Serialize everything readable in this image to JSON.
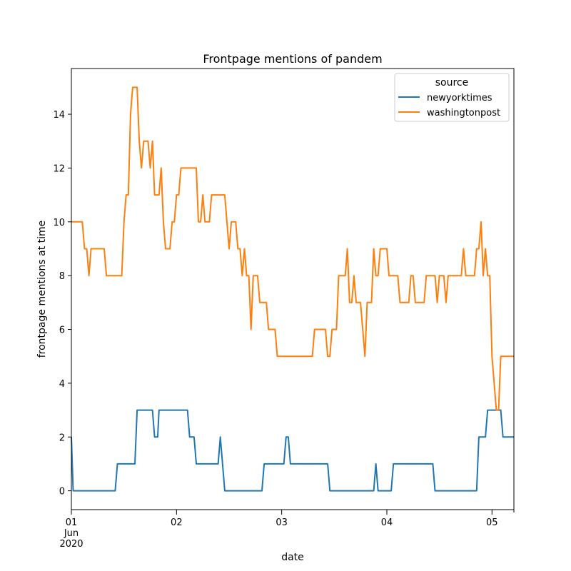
{
  "chart_data": {
    "type": "line",
    "title": "Frontpage mentions of pandem",
    "xlabel": "date",
    "ylabel": "frontpage mentions at time",
    "x_unit": "hours since 2020-06-01 00:00",
    "xlim": [
      0,
      101
    ],
    "ylim": [
      -0.7,
      15.7
    ],
    "grid": false,
    "legend": {
      "title": "source",
      "placement": "top-right"
    },
    "x_ticks": [
      {
        "x": 0,
        "label": "01",
        "sub": [
          "Jun",
          "2020"
        ]
      },
      {
        "x": 24,
        "label": "02"
      },
      {
        "x": 48,
        "label": "03"
      },
      {
        "x": 72,
        "label": "04"
      },
      {
        "x": 96,
        "label": "05"
      }
    ],
    "y_ticks": [
      0,
      2,
      4,
      6,
      8,
      10,
      12,
      14
    ],
    "series": [
      {
        "name": "newyorktimes",
        "color": "#1f77b4",
        "points": [
          [
            0,
            2
          ],
          [
            0.4,
            0
          ],
          [
            10,
            0
          ],
          [
            10.5,
            1
          ],
          [
            14.5,
            1
          ],
          [
            15,
            3
          ],
          [
            18.5,
            3
          ],
          [
            19,
            2
          ],
          [
            19.7,
            2
          ],
          [
            20,
            3
          ],
          [
            26.5,
            3
          ],
          [
            27,
            2
          ],
          [
            28,
            2
          ],
          [
            28.5,
            1
          ],
          [
            33.5,
            1
          ],
          [
            34,
            2
          ],
          [
            35,
            0
          ],
          [
            43.5,
            0
          ],
          [
            44,
            1
          ],
          [
            48.5,
            1
          ],
          [
            49,
            2
          ],
          [
            49.5,
            2
          ],
          [
            50,
            1
          ],
          [
            58.5,
            1
          ],
          [
            59,
            0
          ],
          [
            69,
            0
          ],
          [
            69.5,
            1
          ],
          [
            70,
            0
          ],
          [
            73,
            0
          ],
          [
            73.5,
            1
          ],
          [
            82.5,
            1
          ],
          [
            83,
            0
          ],
          [
            92.5,
            0
          ],
          [
            93,
            2
          ],
          [
            94.5,
            2
          ],
          [
            95,
            3
          ],
          [
            98,
            3
          ],
          [
            98.5,
            2
          ],
          [
            101,
            2
          ]
        ]
      },
      {
        "name": "washingtonpost",
        "color": "#ff7f0e",
        "points": [
          [
            0,
            10
          ],
          [
            2.5,
            10
          ],
          [
            3,
            9
          ],
          [
            3.5,
            9
          ],
          [
            4,
            8
          ],
          [
            4.5,
            9
          ],
          [
            7.5,
            9
          ],
          [
            8,
            8
          ],
          [
            11.5,
            8
          ],
          [
            12,
            10
          ],
          [
            12.5,
            11
          ],
          [
            13,
            11
          ],
          [
            13.5,
            14
          ],
          [
            14,
            15
          ],
          [
            15,
            15
          ],
          [
            15.5,
            13
          ],
          [
            16,
            12
          ],
          [
            16.5,
            13
          ],
          [
            17.5,
            13
          ],
          [
            18,
            12
          ],
          [
            18.5,
            13
          ],
          [
            19,
            11
          ],
          [
            20,
            11
          ],
          [
            20.5,
            12
          ],
          [
            21,
            10
          ],
          [
            21.5,
            9
          ],
          [
            22.5,
            9
          ],
          [
            23,
            10
          ],
          [
            23.5,
            10
          ],
          [
            24,
            11
          ],
          [
            24.5,
            11
          ],
          [
            25,
            12
          ],
          [
            28.5,
            12
          ],
          [
            29,
            10
          ],
          [
            29.5,
            10
          ],
          [
            30,
            11
          ],
          [
            30.5,
            10
          ],
          [
            31.5,
            10
          ],
          [
            32,
            11
          ],
          [
            35,
            11
          ],
          [
            35.5,
            10
          ],
          [
            36,
            9
          ],
          [
            36.5,
            10
          ],
          [
            37.5,
            10
          ],
          [
            38,
            9
          ],
          [
            38.5,
            9
          ],
          [
            39,
            8
          ],
          [
            39.5,
            9
          ],
          [
            40,
            8
          ],
          [
            40.5,
            8
          ],
          [
            41,
            6
          ],
          [
            41.5,
            8
          ],
          [
            42.5,
            8
          ],
          [
            43,
            7
          ],
          [
            44.5,
            7
          ],
          [
            45,
            6
          ],
          [
            46.5,
            6
          ],
          [
            47,
            5
          ],
          [
            55,
            5
          ],
          [
            55.5,
            6
          ],
          [
            58,
            6
          ],
          [
            58.5,
            5
          ],
          [
            59,
            5
          ],
          [
            59.5,
            6
          ],
          [
            60.5,
            6
          ],
          [
            61,
            8
          ],
          [
            62.5,
            8
          ],
          [
            63,
            9
          ],
          [
            63.5,
            7
          ],
          [
            64,
            7
          ],
          [
            64.5,
            8
          ],
          [
            65,
            7
          ],
          [
            66,
            7
          ],
          [
            67,
            5
          ],
          [
            67.5,
            7
          ],
          [
            68.5,
            7
          ],
          [
            69,
            9
          ],
          [
            69.5,
            8
          ],
          [
            70,
            8
          ],
          [
            70.5,
            9
          ],
          [
            72,
            9
          ],
          [
            72.5,
            8
          ],
          [
            74.5,
            8
          ],
          [
            75,
            7
          ],
          [
            77,
            7
          ],
          [
            77.5,
            8
          ],
          [
            78,
            8
          ],
          [
            78.5,
            7
          ],
          [
            80.5,
            7
          ],
          [
            81,
            8
          ],
          [
            83,
            8
          ],
          [
            83.5,
            7
          ],
          [
            84,
            8
          ],
          [
            85,
            8
          ],
          [
            85.5,
            7
          ],
          [
            86,
            8
          ],
          [
            89,
            8
          ],
          [
            89.5,
            9
          ],
          [
            90,
            8
          ],
          [
            92,
            8
          ],
          [
            92.5,
            9
          ],
          [
            93,
            9
          ],
          [
            93.5,
            10
          ],
          [
            94,
            8
          ],
          [
            94.5,
            9
          ],
          [
            95,
            8
          ],
          [
            95.5,
            8
          ],
          [
            96,
            5
          ],
          [
            97,
            3
          ],
          [
            97.5,
            3
          ],
          [
            98,
            5
          ],
          [
            101,
            5
          ]
        ]
      }
    ]
  }
}
